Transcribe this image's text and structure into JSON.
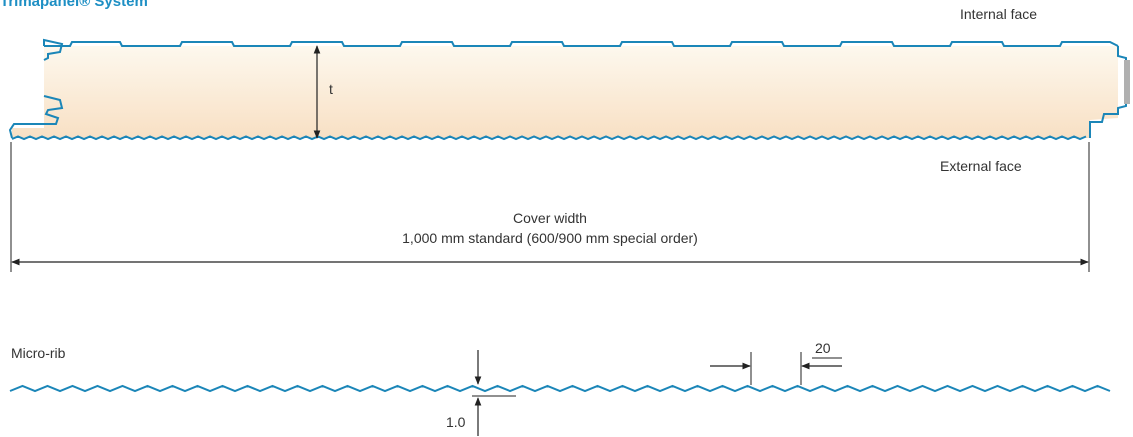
{
  "header": {
    "title": "Trimapanel® System"
  },
  "labels": {
    "internal_face": "Internal face",
    "external_face": "External face",
    "thickness": "t",
    "cover_width_title": "Cover width",
    "cover_width_detail": "1,000 mm standard (600/900 mm special order)",
    "micro_rib": "Micro-rib",
    "rib_pitch": "20",
    "rib_depth": "1.0"
  },
  "colors": {
    "title": "#1e8fc4",
    "profile_stroke": "#1b86b8",
    "core_fill_top": "#fdf6e8",
    "core_fill_bottom": "#f7dfc2",
    "dimension": "#222222"
  }
}
